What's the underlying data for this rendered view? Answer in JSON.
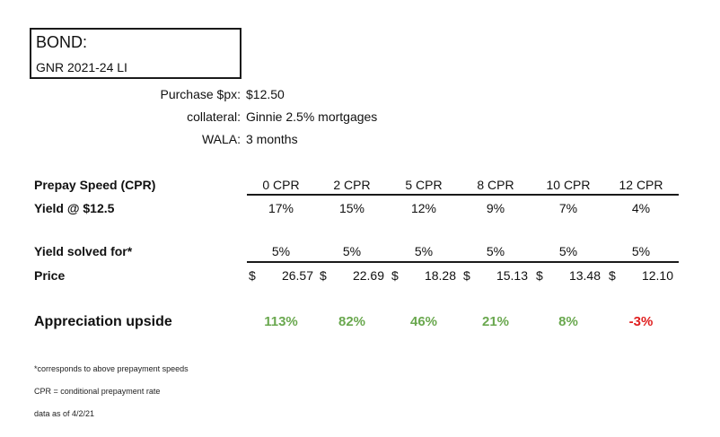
{
  "bond": {
    "title": "BOND:",
    "name": "GNR 2021-24 LI"
  },
  "details": [
    {
      "label": "Purchase $px:",
      "value": "$12.50"
    },
    {
      "label": "collateral:",
      "value": "Ginnie 2.5% mortgages"
    },
    {
      "label": "WALA:",
      "value": "3 months"
    }
  ],
  "table": {
    "prepay_label": "Prepay Speed (CPR)",
    "speeds": [
      "0 CPR",
      "2 CPR",
      "5 CPR",
      "8 CPR",
      "10 CPR",
      "12 CPR"
    ],
    "yield_label": "Yield @ $12.5",
    "yields": [
      "17%",
      "15%",
      "12%",
      "9%",
      "7%",
      "4%"
    ],
    "solved_label": "Yield solved for*",
    "solved": [
      "5%",
      "5%",
      "5%",
      "5%",
      "5%",
      "5%"
    ],
    "price_label": "Price",
    "currency": "$",
    "prices": [
      "26.57",
      "22.69",
      "18.28",
      "15.13",
      "13.48",
      "12.10"
    ],
    "upside_label": "Appreciation upside",
    "upsides": [
      "113%",
      "82%",
      "46%",
      "21%",
      "8%",
      "-3%"
    ]
  },
  "colors": {
    "positive": "#6aa84f",
    "negative": "#e02020"
  },
  "notes": [
    "*corresponds to above prepayment speeds",
    "CPR = conditional prepayment rate",
    "data as of 4/2/21"
  ]
}
